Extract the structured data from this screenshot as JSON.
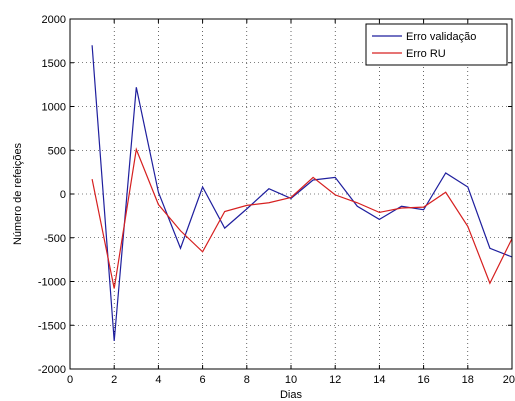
{
  "chart_data": {
    "type": "line",
    "title": "",
    "xlabel": "Dias",
    "ylabel": "Número de refeições",
    "xlim": [
      0,
      20
    ],
    "ylim": [
      -2000,
      2000
    ],
    "xticks": [
      "0",
      "2",
      "4",
      "6",
      "8",
      "10",
      "12",
      "14",
      "16",
      "18",
      "20"
    ],
    "yticks": [
      "2000",
      "1500",
      "1000",
      "500",
      "0",
      "-500",
      "-1000",
      "-1500",
      "-2000"
    ],
    "grid": "on",
    "legend_position": "top-right",
    "x": [
      1,
      2,
      3,
      4,
      5,
      6,
      7,
      8,
      9,
      10,
      11,
      12,
      13,
      14,
      15,
      16,
      17,
      18,
      19,
      20
    ],
    "series": [
      {
        "name": "Erro validação",
        "color": "#1f1f9e",
        "values": [
          1700,
          -1680,
          1220,
          20,
          -620,
          80,
          -390,
          -170,
          60,
          -50,
          160,
          190,
          -140,
          -290,
          -140,
          -180,
          240,
          80,
          -620,
          -720
        ]
      },
      {
        "name": "Erro RU",
        "color": "#d62020",
        "values": [
          170,
          -1080,
          510,
          -120,
          -420,
          -660,
          -200,
          -130,
          -100,
          -40,
          190,
          -10,
          -100,
          -210,
          -160,
          -150,
          20,
          -370,
          -1020,
          -510
        ]
      }
    ]
  }
}
